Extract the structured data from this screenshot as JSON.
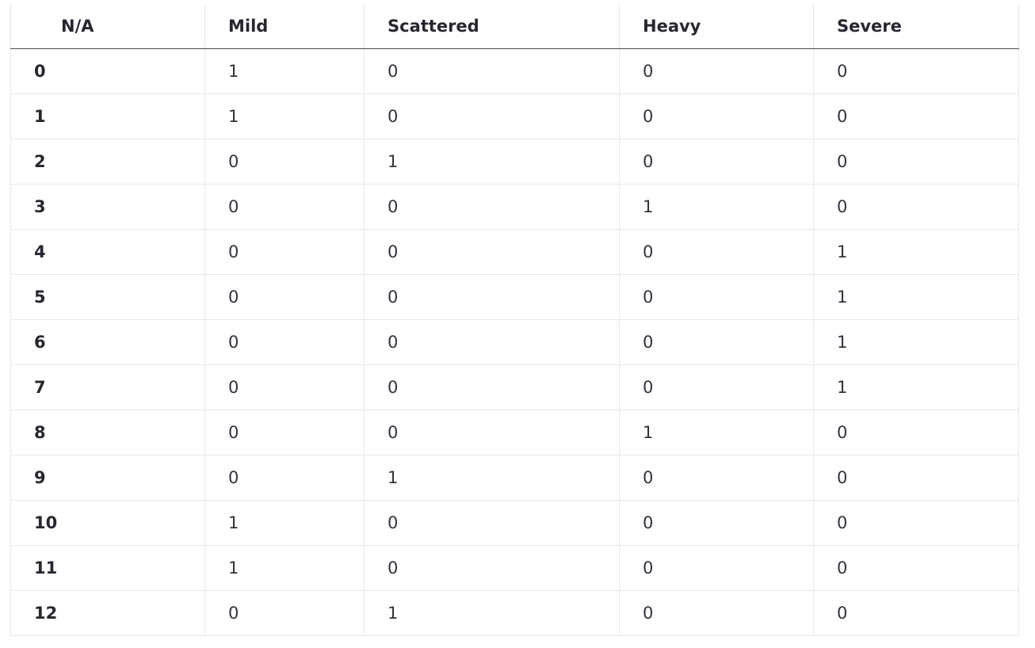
{
  "table": {
    "columns": [
      "N/A",
      "Mild",
      "Scattered",
      "Heavy",
      "Severe"
    ],
    "rows": [
      {
        "index": "0",
        "cells": [
          "1",
          "0",
          "0",
          "0"
        ]
      },
      {
        "index": "1",
        "cells": [
          "1",
          "0",
          "0",
          "0"
        ]
      },
      {
        "index": "2",
        "cells": [
          "0",
          "1",
          "0",
          "0"
        ]
      },
      {
        "index": "3",
        "cells": [
          "0",
          "0",
          "1",
          "0"
        ]
      },
      {
        "index": "4",
        "cells": [
          "0",
          "0",
          "0",
          "1"
        ]
      },
      {
        "index": "5",
        "cells": [
          "0",
          "0",
          "0",
          "1"
        ]
      },
      {
        "index": "6",
        "cells": [
          "0",
          "0",
          "0",
          "1"
        ]
      },
      {
        "index": "7",
        "cells": [
          "0",
          "0",
          "0",
          "1"
        ]
      },
      {
        "index": "8",
        "cells": [
          "0",
          "0",
          "1",
          "0"
        ]
      },
      {
        "index": "9",
        "cells": [
          "0",
          "1",
          "0",
          "0"
        ]
      },
      {
        "index": "10",
        "cells": [
          "1",
          "0",
          "0",
          "0"
        ]
      },
      {
        "index": "11",
        "cells": [
          "1",
          "0",
          "0",
          "0"
        ]
      },
      {
        "index": "12",
        "cells": [
          "0",
          "1",
          "0",
          "0"
        ]
      }
    ]
  }
}
